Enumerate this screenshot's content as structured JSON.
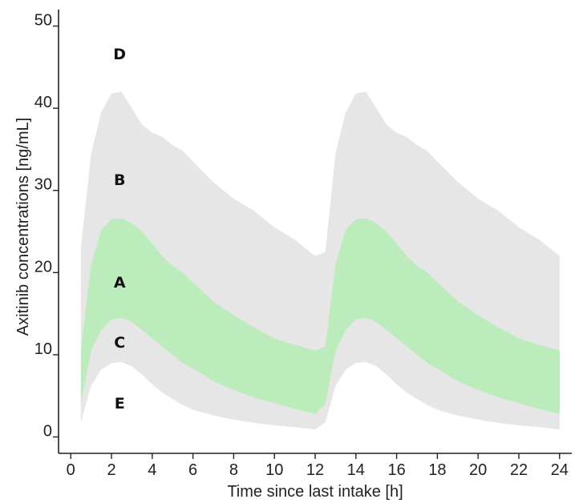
{
  "chart_data": {
    "type": "area",
    "title": "",
    "xlabel": "Time since last intake [h]",
    "ylabel": "Axitinib concentrations [ng/mL]",
    "xlim": [
      -0.6,
      24.6
    ],
    "ylim": [
      -2,
      52
    ],
    "xticks": [
      0,
      2,
      4,
      6,
      8,
      10,
      12,
      14,
      16,
      18,
      20,
      22,
      24
    ],
    "yticks": [
      0,
      10,
      20,
      30,
      40,
      50
    ],
    "grid": false,
    "legend": "none",
    "colors": {
      "outer_band": "#e6e6e6",
      "inner_band": "#bcebbc",
      "axis": "#222222"
    },
    "x": [
      0.5,
      1,
      1.5,
      2,
      2.5,
      3,
      3.5,
      4,
      4.5,
      5,
      5.5,
      6,
      7,
      8,
      9,
      10,
      11,
      12,
      12.5,
      13,
      13.5,
      14,
      14.5,
      15,
      15.5,
      16,
      16.5,
      17,
      17.5,
      18,
      19,
      20,
      21,
      22,
      23,
      24
    ],
    "bands": [
      {
        "name": "outer",
        "lower": [
          1.8,
          6.2,
          8.2,
          9.0,
          9.1,
          8.6,
          7.6,
          6.4,
          5.4,
          4.6,
          3.9,
          3.3,
          2.6,
          2.1,
          1.7,
          1.4,
          1.2,
          0.9,
          1.8,
          6.2,
          8.2,
          9.0,
          9.1,
          8.6,
          7.6,
          6.4,
          5.4,
          4.6,
          3.9,
          3.3,
          2.6,
          2.1,
          1.7,
          1.4,
          1.2,
          0.9
        ],
        "upper": [
          23.0,
          34.5,
          39.5,
          41.8,
          42.0,
          40.0,
          38.0,
          37.0,
          36.5,
          35.5,
          34.8,
          33.5,
          31.0,
          29.0,
          27.5,
          25.5,
          24.0,
          22.0,
          22.5,
          34.5,
          39.5,
          41.8,
          42.0,
          40.0,
          38.0,
          37.0,
          36.5,
          35.5,
          34.8,
          33.5,
          31.0,
          29.0,
          27.5,
          25.5,
          24.0,
          22.0
        ]
      },
      {
        "name": "inner",
        "lower": [
          4.0,
          10.5,
          13.0,
          14.3,
          14.5,
          14.0,
          13.0,
          12.0,
          11.0,
          10.0,
          9.0,
          8.3,
          6.8,
          5.7,
          4.8,
          4.1,
          3.4,
          2.8,
          4.0,
          10.5,
          13.0,
          14.3,
          14.5,
          14.0,
          13.0,
          12.0,
          11.0,
          10.0,
          9.0,
          8.3,
          6.8,
          5.7,
          4.8,
          4.1,
          3.4,
          2.8
        ],
        "upper": [
          10.5,
          21.0,
          25.2,
          26.5,
          26.6,
          26.0,
          25.0,
          23.5,
          22.0,
          20.8,
          20.0,
          18.8,
          16.5,
          14.8,
          13.3,
          12.0,
          11.2,
          10.5,
          11.0,
          21.0,
          25.2,
          26.5,
          26.6,
          26.0,
          25.0,
          23.5,
          22.0,
          20.8,
          20.0,
          18.8,
          16.5,
          14.8,
          13.3,
          12.0,
          11.2,
          10.5
        ]
      }
    ],
    "region_labels": [
      {
        "text": "D",
        "x": 2.4,
        "y": 46.5
      },
      {
        "text": "B",
        "x": 2.4,
        "y": 31.2
      },
      {
        "text": "A",
        "x": 2.4,
        "y": 18.7
      },
      {
        "text": "C",
        "x": 2.4,
        "y": 11.4
      },
      {
        "text": "E",
        "x": 2.4,
        "y": 4.0
      }
    ]
  }
}
